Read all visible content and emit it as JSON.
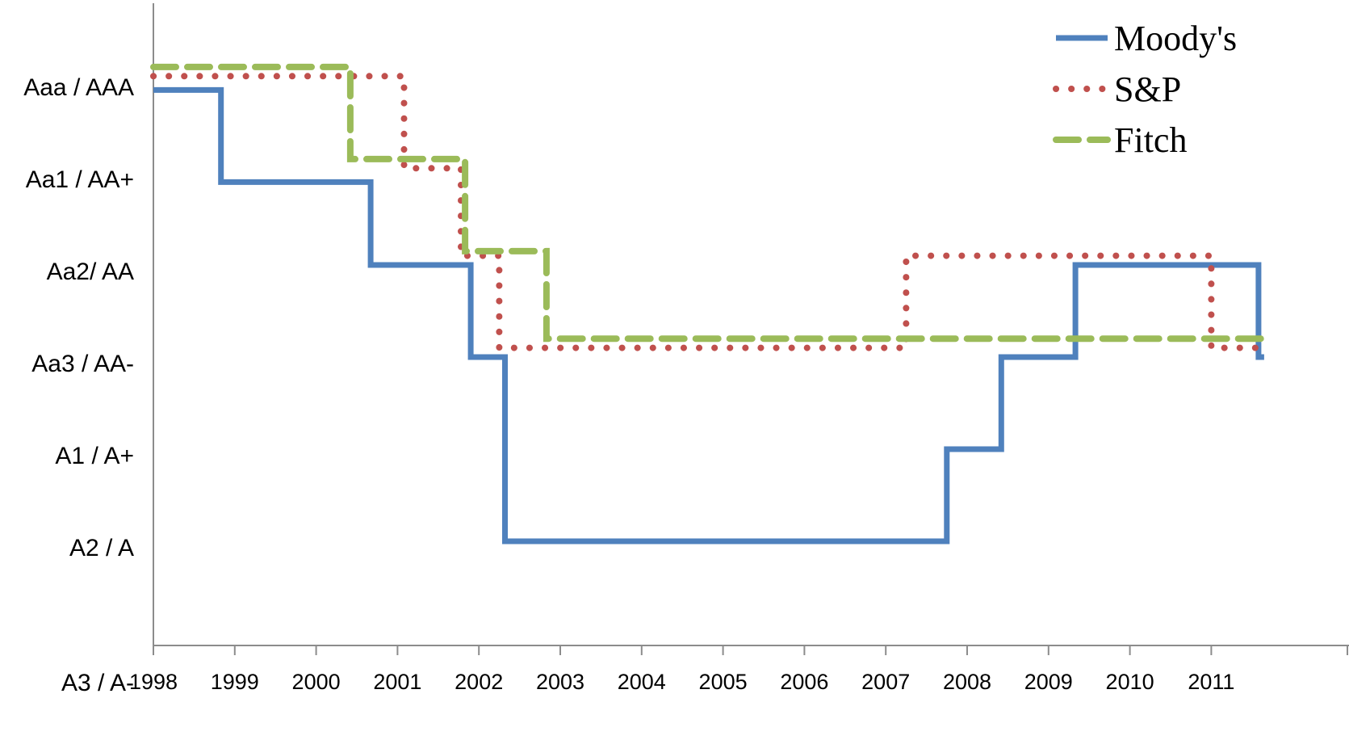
{
  "chart_data": {
    "type": "line",
    "step": true,
    "title": "",
    "xlabel": "",
    "ylabel": "",
    "x_ticks": [
      "1998",
      "1999",
      "2000",
      "2001",
      "2002",
      "2003",
      "2004",
      "2005",
      "2006",
      "2007",
      "2008",
      "2009",
      "2010",
      "2011"
    ],
    "xlim": [
      1998,
      2011.65
    ],
    "y_categories": [
      "Aaa / AAA",
      "Aa1 / AA+",
      "Aa2/ AA",
      "Aa3 / AA-",
      "A1 / A+",
      "A2 / A",
      "A3 / A-"
    ],
    "y_scale_note": "0 = Aaa / AAA, 6 = A3 / A-",
    "grid": false,
    "legend": {
      "position": "top-right"
    },
    "series": [
      {
        "name": "Moody's",
        "color": "#4F81BD",
        "style": "solid",
        "points": [
          [
            1998.0,
            0.1
          ],
          [
            1998.83,
            0.1
          ],
          [
            1998.83,
            1.1
          ],
          [
            2000.67,
            1.1
          ],
          [
            2000.67,
            2.0
          ],
          [
            2001.9,
            2.0
          ],
          [
            2001.9,
            3.0
          ],
          [
            2002.32,
            3.0
          ],
          [
            2002.32,
            5.0
          ],
          [
            2007.75,
            5.0
          ],
          [
            2007.75,
            4.0
          ],
          [
            2008.42,
            4.0
          ],
          [
            2008.42,
            3.0
          ],
          [
            2009.33,
            3.0
          ],
          [
            2009.33,
            2.0
          ],
          [
            2011.58,
            2.0
          ],
          [
            2011.58,
            3.0
          ],
          [
            2011.65,
            3.0
          ]
        ]
      },
      {
        "name": "S&P",
        "color": "#C0504D",
        "style": "dotted",
        "points": [
          [
            1998.0,
            -0.05
          ],
          [
            2001.08,
            -0.05
          ],
          [
            2001.08,
            0.95
          ],
          [
            2001.78,
            0.95
          ],
          [
            2001.78,
            1.9
          ],
          [
            2002.25,
            1.9
          ],
          [
            2002.25,
            2.9
          ],
          [
            2007.25,
            2.9
          ],
          [
            2007.25,
            1.9
          ],
          [
            2011.0,
            1.9
          ],
          [
            2011.0,
            2.9
          ],
          [
            2011.65,
            2.9
          ]
        ]
      },
      {
        "name": "Fitch",
        "color": "#9BBB59",
        "style": "dashed",
        "points": [
          [
            1998.0,
            -0.15
          ],
          [
            2000.42,
            -0.15
          ],
          [
            2000.42,
            0.85
          ],
          [
            2001.83,
            0.85
          ],
          [
            2001.83,
            1.85
          ],
          [
            2002.83,
            1.85
          ],
          [
            2002.83,
            2.8
          ],
          [
            2011.65,
            2.8
          ]
        ]
      }
    ]
  }
}
